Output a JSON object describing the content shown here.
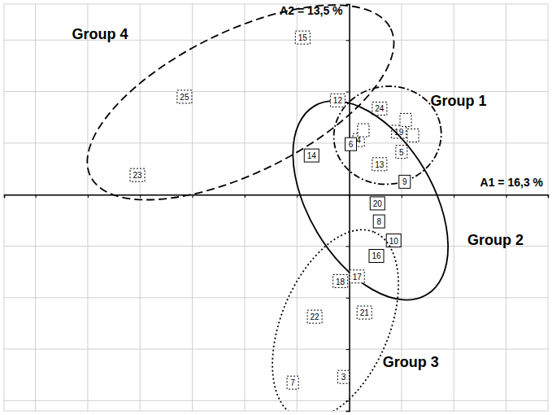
{
  "chart_data": {
    "type": "scatter",
    "x_label": "A1 = 16,3 %",
    "y_label": "A2 = 13,5 %",
    "xlim": [
      -6.6,
      3.8
    ],
    "ylim": [
      -4.2,
      3.7
    ],
    "xticks": [
      -6,
      -5,
      -4,
      -3,
      -2,
      -1,
      0,
      1,
      2,
      3
    ],
    "yticks": [
      -4,
      -3,
      -2,
      -1,
      0,
      1,
      2,
      3
    ],
    "grid": true,
    "tick_labels": false,
    "color": "#000000",
    "series": [
      {
        "name": "Group 1",
        "line_style": "dashdot",
        "x": [
          0.58,
          0.95,
          1.0,
          0.18,
          0.58,
          0.27,
          1.08,
          1.22
        ],
        "values": [
          1.67,
          1.22,
          0.83,
          1.06,
          0.59,
          1.25,
          1.45,
          1.15
        ],
        "labels": [
          "24",
          "19",
          "5",
          "4",
          "13",
          null,
          null,
          null
        ]
      },
      {
        "name": "Group 2",
        "line_style": "solid",
        "x": [
          0.03,
          -0.72,
          1.06,
          0.54,
          0.57,
          0.85,
          0.52
        ],
        "values": [
          0.98,
          0.76,
          0.25,
          -0.17,
          -0.52,
          -0.89,
          -1.19
        ],
        "labels": [
          "6",
          "14",
          "9",
          "20",
          "8",
          "10",
          "16"
        ]
      },
      {
        "name": "Group 3",
        "line_style": "dotted",
        "x": [
          0.15,
          -0.17,
          -0.66,
          0.29,
          -1.08,
          -0.11
        ],
        "values": [
          -1.59,
          -1.68,
          -2.37,
          -2.29,
          -3.65,
          -3.54
        ],
        "labels": [
          "17",
          "18",
          "22",
          "21",
          "7",
          "3"
        ]
      },
      {
        "name": "Group 4",
        "line_style": "dashed",
        "x": [
          -0.89,
          -3.15,
          -4.05,
          -0.22
        ],
        "values": [
          3.05,
          1.9,
          0.38,
          1.83
        ],
        "labels": [
          "15",
          "25",
          "23",
          "12"
        ]
      }
    ]
  }
}
